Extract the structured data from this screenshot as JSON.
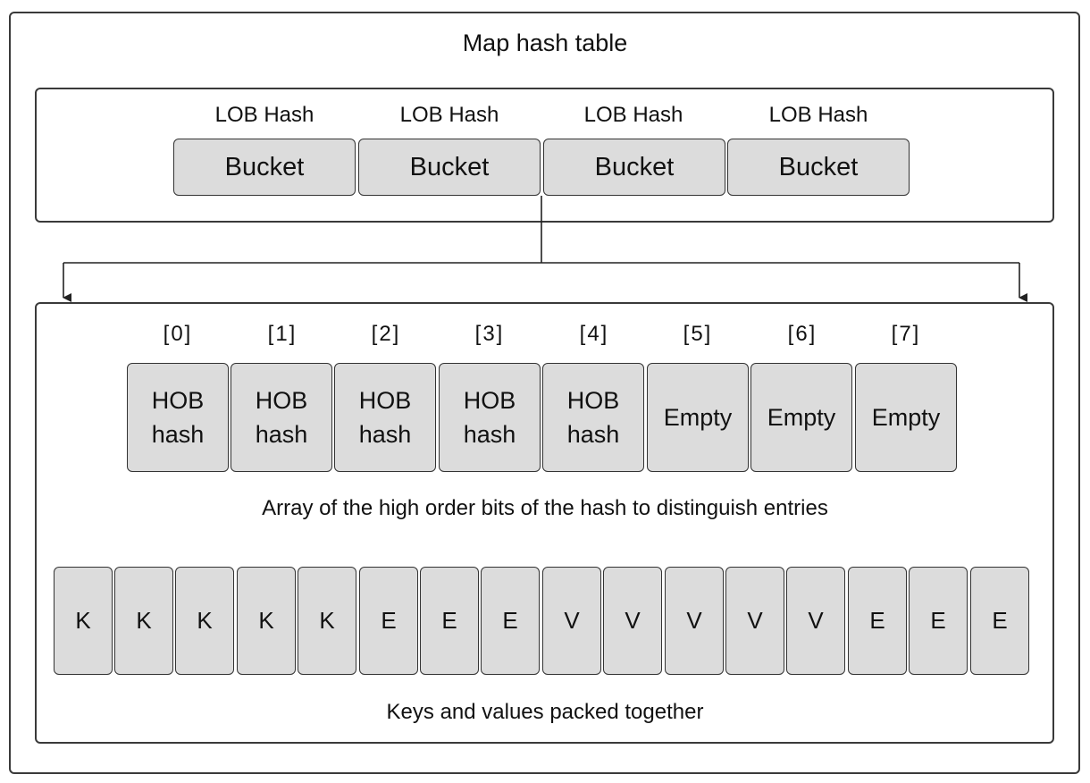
{
  "title": "Map hash table",
  "buckets": {
    "lob_labels": [
      "LOB Hash",
      "LOB Hash",
      "LOB Hash",
      "LOB Hash"
    ],
    "items": [
      "Bucket",
      "Bucket",
      "Bucket",
      "Bucket"
    ]
  },
  "tophash": {
    "indices": [
      "[0]",
      "[1]",
      "[2]",
      "[3]",
      "[4]",
      "[5]",
      "[6]",
      "[7]"
    ],
    "cells": [
      {
        "line1": "HOB",
        "line2": "hash"
      },
      {
        "line1": "HOB",
        "line2": "hash"
      },
      {
        "line1": "HOB",
        "line2": "hash"
      },
      {
        "line1": "HOB",
        "line2": "hash"
      },
      {
        "line1": "HOB",
        "line2": "hash"
      },
      {
        "line1": "Empty",
        "line2": ""
      },
      {
        "line1": "Empty",
        "line2": ""
      },
      {
        "line1": "Empty",
        "line2": ""
      }
    ],
    "caption": "Array of the high order bits of the hash to distinguish entries"
  },
  "keys_values": {
    "cells": [
      "K",
      "K",
      "K",
      "K",
      "K",
      "E",
      "E",
      "E",
      "V",
      "V",
      "V",
      "V",
      "V",
      "E",
      "E",
      "E"
    ],
    "caption": "Keys and values packed together"
  }
}
